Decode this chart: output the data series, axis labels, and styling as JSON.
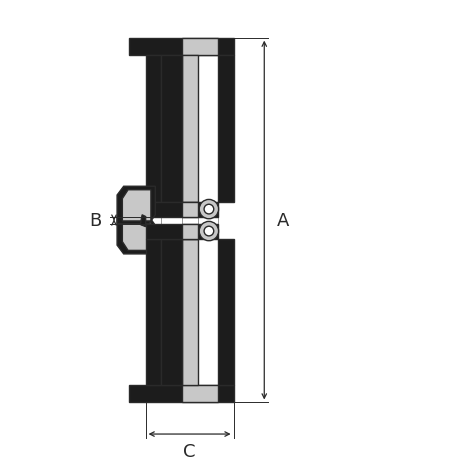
{
  "bg_color": "#ffffff",
  "line_color": "#2a2a2a",
  "fill_dark": "#1c1c1c",
  "fill_light": "#c8c8c8",
  "fill_white": "#ffffff",
  "label_A": "A",
  "label_B": "B",
  "label_C": "C",
  "figsize": [
    4.6,
    4.6
  ],
  "dpi": 100,
  "xlim": [
    0,
    10
  ],
  "ylim": [
    0,
    10
  ]
}
